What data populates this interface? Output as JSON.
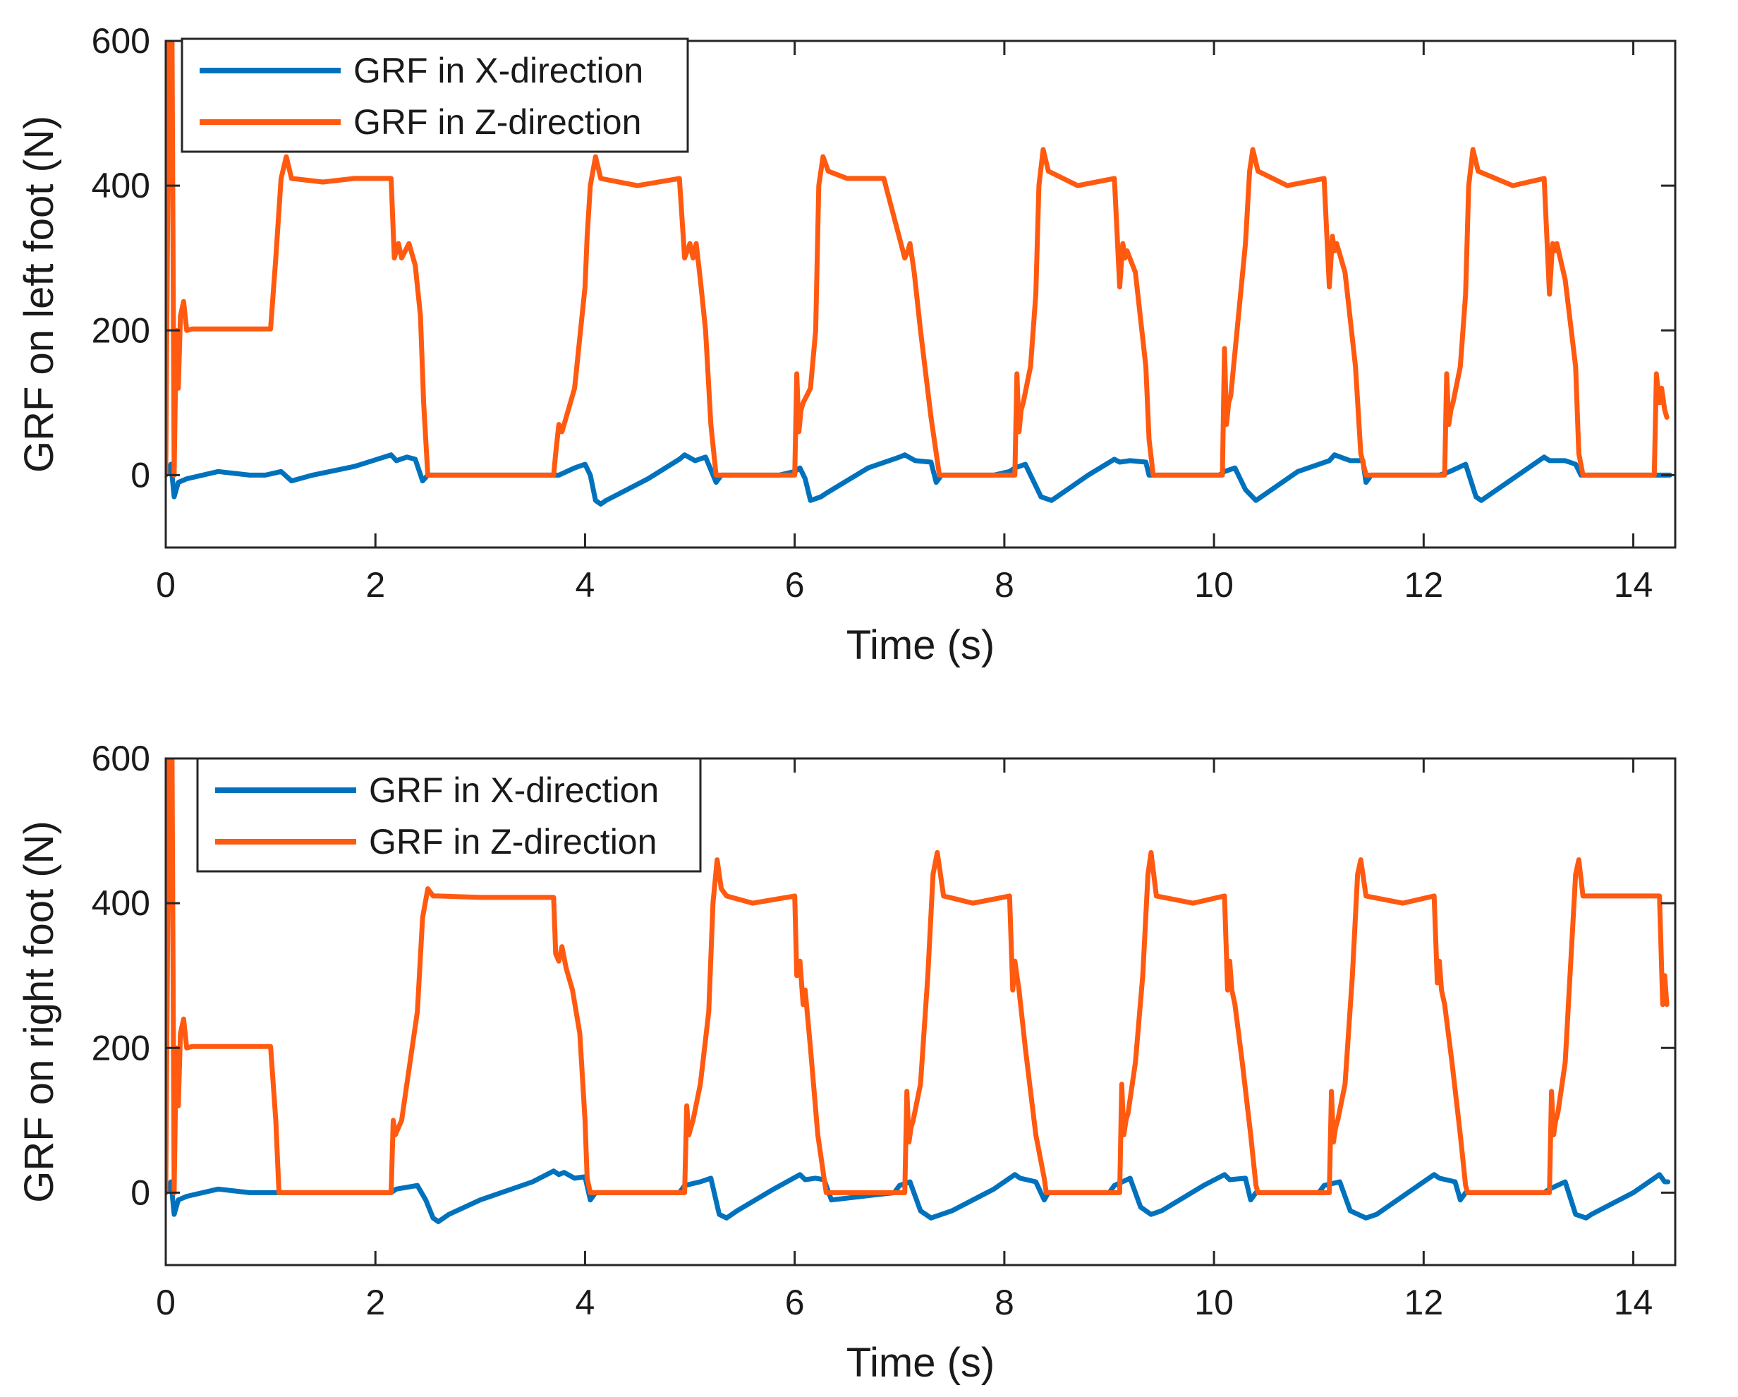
{
  "chart_data": [
    {
      "type": "line",
      "title": "",
      "xlabel": "Time (s)",
      "ylabel": "GRF on left foot (N)",
      "xlim": [
        0,
        14.4
      ],
      "ylim": [
        -100,
        600
      ],
      "xticks": [
        0,
        2,
        4,
        6,
        8,
        10,
        12,
        14
      ],
      "xtick_labels": [
        "0",
        "2",
        "4",
        "6",
        "8",
        "10",
        "12",
        "14"
      ],
      "yticks": [
        0,
        200,
        400,
        600
      ],
      "ytick_labels": [
        "0",
        "200",
        "400",
        "600"
      ],
      "grid": false,
      "legend_position": "top-left",
      "series": [
        {
          "name": "GRF in X-direction",
          "color": "#0072BD",
          "x": [
            0,
            0.05,
            0.08,
            0.12,
            0.2,
            0.5,
            0.8,
            0.95,
            1.1,
            1.2,
            1.4,
            1.8,
            2.15,
            2.2,
            2.3,
            2.38,
            2.45,
            2.5,
            3.72,
            3.75,
            3.9,
            4.0,
            4.05,
            4.1,
            4.15,
            4.2,
            4.6,
            4.9,
            4.95,
            5.05,
            5.15,
            5.25,
            5.3,
            5.85,
            6.0,
            6.05,
            6.1,
            6.15,
            6.25,
            6.3,
            6.7,
            7.0,
            7.05,
            7.15,
            7.3,
            7.35,
            7.4,
            7.9,
            8.05,
            8.1,
            8.2,
            8.35,
            8.45,
            8.5,
            8.8,
            9.05,
            9.1,
            9.2,
            9.35,
            9.38,
            9.45,
            10.05,
            10.1,
            10.2,
            10.3,
            10.4,
            10.45,
            10.8,
            11.1,
            11.15,
            11.3,
            11.42,
            11.45,
            11.5,
            12.15,
            12.25,
            12.4,
            12.5,
            12.55,
            12.9,
            13.15,
            13.2,
            13.35,
            13.45,
            13.5,
            14.25,
            14.35
          ],
          "y": [
            0,
            15,
            -30,
            -10,
            -5,
            5,
            0,
            0,
            5,
            -8,
            0,
            12,
            28,
            20,
            25,
            22,
            -8,
            0,
            0,
            0,
            10,
            15,
            0,
            -35,
            -40,
            -35,
            -5,
            22,
            28,
            20,
            25,
            -10,
            0,
            0,
            5,
            10,
            -5,
            -35,
            -30,
            -25,
            10,
            25,
            28,
            20,
            18,
            -10,
            0,
            0,
            5,
            10,
            15,
            -30,
            -35,
            -30,
            0,
            22,
            18,
            20,
            18,
            0,
            0,
            0,
            5,
            10,
            -20,
            -35,
            -30,
            5,
            20,
            28,
            20,
            20,
            -10,
            0,
            0,
            5,
            15,
            -30,
            -35,
            0,
            25,
            20,
            20,
            15,
            0,
            0,
            0
          ]
        },
        {
          "name": "GRF in Z-direction",
          "color": "#FF5A10",
          "x": [
            0,
            0.03,
            0.06,
            0.08,
            0.1,
            0.12,
            0.14,
            0.17,
            0.2,
            0.25,
            1.0,
            1.05,
            1.1,
            1.15,
            1.2,
            1.5,
            1.8,
            2.15,
            2.18,
            2.22,
            2.25,
            2.32,
            2.38,
            2.43,
            2.46,
            2.5,
            2.52,
            3.7,
            3.72,
            3.75,
            3.78,
            3.82,
            3.9,
            4.0,
            4.02,
            4.05,
            4.1,
            4.15,
            4.5,
            4.9,
            4.95,
            5.0,
            5.03,
            5.06,
            5.1,
            5.15,
            5.2,
            5.25,
            5.28,
            5.3,
            6.0,
            6.02,
            6.04,
            6.06,
            6.08,
            6.15,
            6.2,
            6.23,
            6.27,
            6.32,
            6.5,
            6.85,
            7.05,
            7.08,
            7.1,
            7.12,
            7.14,
            7.2,
            7.3,
            7.38,
            7.4,
            8.1,
            8.12,
            8.14,
            8.16,
            8.18,
            8.25,
            8.3,
            8.33,
            8.37,
            8.42,
            8.7,
            9.05,
            9.1,
            9.13,
            9.15,
            9.17,
            9.25,
            9.35,
            9.38,
            9.42,
            10.08,
            10.1,
            10.12,
            10.14,
            10.16,
            10.22,
            10.3,
            10.34,
            10.37,
            10.42,
            10.7,
            11.05,
            11.1,
            11.13,
            11.15,
            11.17,
            11.25,
            11.35,
            11.4,
            11.45,
            12.2,
            12.22,
            12.24,
            12.26,
            12.28,
            12.35,
            12.4,
            12.43,
            12.47,
            12.52,
            12.85,
            13.15,
            13.2,
            13.23,
            13.25,
            13.27,
            13.35,
            13.45,
            13.48,
            13.52,
            14.2,
            14.22,
            14.25,
            14.27,
            14.3,
            14.32
          ],
          "y": [
            0,
            600,
            600,
            0,
            200,
            120,
            220,
            240,
            200,
            202,
            202,
            300,
            410,
            440,
            410,
            405,
            410,
            410,
            300,
            320,
            300,
            320,
            290,
            220,
            100,
            0,
            0,
            0,
            30,
            70,
            60,
            80,
            120,
            260,
            330,
            400,
            440,
            410,
            400,
            410,
            300,
            320,
            300,
            320,
            270,
            200,
            70,
            0,
            0,
            0,
            0,
            140,
            60,
            90,
            100,
            120,
            200,
            400,
            440,
            420,
            410,
            410,
            300,
            310,
            320,
            300,
            280,
            200,
            80,
            0,
            0,
            0,
            140,
            60,
            90,
            100,
            150,
            250,
            400,
            450,
            420,
            400,
            410,
            260,
            320,
            300,
            310,
            280,
            150,
            50,
            0,
            0,
            175,
            70,
            100,
            110,
            200,
            320,
            420,
            450,
            420,
            400,
            410,
            260,
            330,
            310,
            320,
            280,
            150,
            30,
            0,
            0,
            140,
            70,
            90,
            100,
            150,
            250,
            400,
            450,
            420,
            400,
            410,
            250,
            320,
            310,
            320,
            270,
            150,
            30,
            0,
            0,
            140,
            100,
            120,
            90,
            80
          ]
        }
      ]
    },
    {
      "type": "line",
      "title": "",
      "xlabel": "Time (s)",
      "ylabel": "GRF on right foot (N)",
      "xlim": [
        0,
        14.4
      ],
      "ylim": [
        -100,
        600
      ],
      "xticks": [
        0,
        2,
        4,
        6,
        8,
        10,
        12,
        14
      ],
      "xtick_labels": [
        "0",
        "2",
        "4",
        "6",
        "8",
        "10",
        "12",
        "14"
      ],
      "yticks": [
        0,
        200,
        400,
        600
      ],
      "ytick_labels": [
        "0",
        "200",
        "400",
        "600"
      ],
      "grid": false,
      "legend_position": "top-left",
      "series": [
        {
          "name": "GRF in X-direction",
          "color": "#0072BD",
          "x": [
            0,
            0.05,
            0.08,
            0.12,
            0.2,
            0.5,
            0.8,
            1.0,
            1.05,
            2.15,
            2.2,
            2.4,
            2.48,
            2.55,
            2.6,
            2.7,
            3.0,
            3.5,
            3.7,
            3.75,
            3.8,
            3.9,
            4.0,
            4.05,
            4.1,
            4.9,
            4.95,
            5.1,
            5.2,
            5.28,
            5.35,
            5.45,
            5.8,
            6.05,
            6.1,
            6.2,
            6.28,
            6.35,
            6.95,
            7.0,
            7.1,
            7.2,
            7.3,
            7.4,
            7.5,
            7.9,
            8.1,
            8.15,
            8.3,
            8.38,
            8.42,
            9.0,
            9.05,
            9.2,
            9.3,
            9.4,
            9.5,
            9.9,
            10.1,
            10.15,
            10.3,
            10.35,
            10.4,
            11.0,
            11.05,
            11.2,
            11.3,
            11.45,
            11.55,
            11.9,
            12.1,
            12.15,
            12.3,
            12.35,
            12.4,
            13.15,
            13.2,
            13.35,
            13.45,
            13.55,
            13.6,
            14.0,
            14.25,
            14.3,
            14.33
          ],
          "y": [
            0,
            15,
            -30,
            -10,
            -5,
            5,
            0,
            0,
            0,
            0,
            5,
            10,
            -10,
            -35,
            -40,
            -30,
            -10,
            15,
            30,
            25,
            28,
            20,
            22,
            -10,
            0,
            0,
            10,
            15,
            20,
            -30,
            -35,
            -25,
            5,
            25,
            18,
            20,
            18,
            -10,
            0,
            10,
            15,
            -25,
            -35,
            -30,
            -25,
            5,
            25,
            20,
            15,
            -10,
            0,
            0,
            10,
            20,
            -20,
            -30,
            -25,
            10,
            25,
            18,
            20,
            -10,
            0,
            0,
            10,
            15,
            -25,
            -35,
            -30,
            5,
            25,
            20,
            15,
            -10,
            0,
            0,
            5,
            15,
            -30,
            -35,
            -30,
            0,
            25,
            15,
            15
          ]
        },
        {
          "name": "GRF in Z-direction",
          "color": "#FF5A10",
          "x": [
            0,
            0.03,
            0.06,
            0.08,
            0.1,
            0.12,
            0.14,
            0.17,
            0.2,
            0.25,
            1.0,
            1.05,
            1.08,
            2.15,
            2.17,
            2.19,
            2.22,
            2.25,
            2.3,
            2.4,
            2.45,
            2.5,
            2.55,
            2.6,
            3.0,
            3.7,
            3.72,
            3.75,
            3.78,
            3.82,
            3.88,
            3.95,
            4.0,
            4.02,
            4.05,
            4.95,
            4.97,
            4.99,
            5.01,
            5.03,
            5.1,
            5.18,
            5.22,
            5.26,
            5.3,
            5.35,
            5.6,
            6.0,
            6.02,
            6.05,
            6.08,
            6.1,
            6.15,
            6.22,
            6.28,
            6.3,
            7.05,
            7.07,
            7.09,
            7.11,
            7.13,
            7.2,
            7.27,
            7.32,
            7.36,
            7.42,
            7.7,
            8.05,
            8.08,
            8.1,
            8.12,
            8.14,
            8.2,
            8.3,
            8.38,
            8.4,
            9.1,
            9.12,
            9.14,
            9.16,
            9.18,
            9.25,
            9.32,
            9.37,
            9.4,
            9.45,
            9.8,
            10.1,
            10.13,
            10.15,
            10.17,
            10.2,
            10.27,
            10.35,
            10.4,
            10.42,
            11.1,
            11.12,
            11.14,
            11.16,
            11.18,
            11.25,
            11.32,
            11.37,
            11.4,
            11.45,
            11.8,
            12.1,
            12.13,
            12.15,
            12.17,
            12.2,
            12.27,
            12.35,
            12.4,
            12.42,
            13.2,
            13.22,
            13.24,
            13.26,
            13.28,
            13.35,
            13.45,
            13.48,
            13.52,
            14.25,
            14.28,
            14.3,
            14.32
          ],
          "y": [
            0,
            600,
            600,
            0,
            200,
            120,
            220,
            240,
            200,
            202,
            202,
            100,
            0,
            0,
            100,
            80,
            90,
            100,
            150,
            250,
            380,
            420,
            410,
            410,
            408,
            408,
            330,
            320,
            340,
            310,
            280,
            220,
            100,
            20,
            0,
            0,
            120,
            80,
            90,
            100,
            150,
            250,
            400,
            460,
            420,
            410,
            400,
            410,
            300,
            320,
            260,
            280,
            200,
            80,
            20,
            0,
            0,
            140,
            70,
            90,
            100,
            150,
            300,
            440,
            470,
            410,
            400,
            410,
            280,
            320,
            300,
            280,
            200,
            80,
            20,
            0,
            0,
            150,
            80,
            100,
            110,
            180,
            300,
            440,
            470,
            410,
            400,
            410,
            280,
            320,
            280,
            260,
            180,
            80,
            10,
            0,
            0,
            140,
            70,
            90,
            100,
            150,
            300,
            440,
            460,
            410,
            400,
            410,
            290,
            320,
            280,
            260,
            180,
            80,
            10,
            0,
            0,
            140,
            80,
            100,
            110,
            180,
            440,
            460,
            410,
            410,
            260,
            300,
            260
          ]
        }
      ]
    }
  ]
}
